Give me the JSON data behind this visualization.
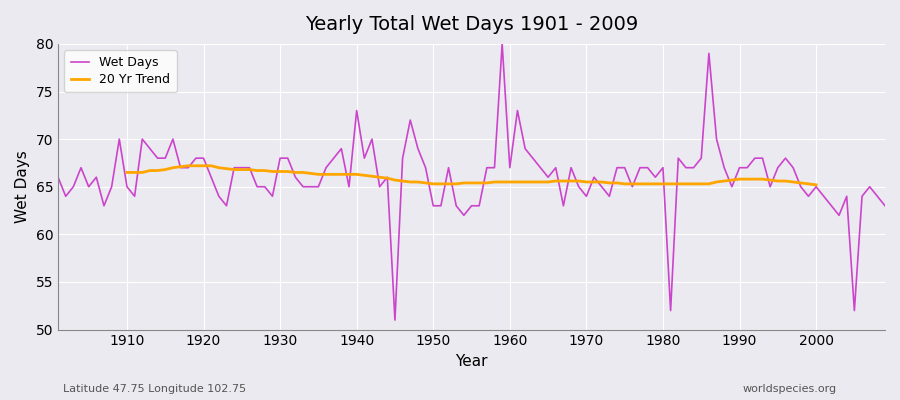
{
  "title": "Yearly Total Wet Days 1901 - 2009",
  "xlabel": "Year",
  "ylabel": "Wet Days",
  "ylim": [
    50,
    80
  ],
  "xlim": [
    1901,
    2009
  ],
  "yticks": [
    50,
    55,
    60,
    65,
    70,
    75,
    80
  ],
  "xticks": [
    1910,
    1920,
    1930,
    1940,
    1950,
    1960,
    1970,
    1980,
    1990,
    2000
  ],
  "wet_days_color": "#CC44CC",
  "trend_color": "#FFA500",
  "background_color": "#E8E8F0",
  "grid_color": "#FFFFFF",
  "legend_labels": [
    "Wet Days",
    "20 Yr Trend"
  ],
  "footer_left": "Latitude 47.75 Longitude 102.75",
  "footer_right": "worldspecies.org",
  "years": [
    1901,
    1902,
    1903,
    1904,
    1905,
    1906,
    1907,
    1908,
    1909,
    1910,
    1911,
    1912,
    1913,
    1914,
    1915,
    1916,
    1917,
    1918,
    1919,
    1920,
    1921,
    1922,
    1923,
    1924,
    1925,
    1926,
    1927,
    1928,
    1929,
    1930,
    1931,
    1932,
    1933,
    1934,
    1935,
    1936,
    1937,
    1938,
    1939,
    1940,
    1941,
    1942,
    1943,
    1944,
    1945,
    1946,
    1947,
    1948,
    1949,
    1950,
    1951,
    1952,
    1953,
    1954,
    1955,
    1956,
    1957,
    1958,
    1959,
    1960,
    1961,
    1962,
    1963,
    1964,
    1965,
    1966,
    1967,
    1968,
    1969,
    1970,
    1971,
    1972,
    1973,
    1974,
    1975,
    1976,
    1977,
    1978,
    1979,
    1980,
    1981,
    1982,
    1983,
    1984,
    1985,
    1986,
    1987,
    1988,
    1989,
    1990,
    1991,
    1992,
    1993,
    1994,
    1995,
    1996,
    1997,
    1998,
    1999,
    2000,
    2001,
    2002,
    2003,
    2004,
    2005,
    2006,
    2007,
    2008,
    2009
  ],
  "wet_days": [
    66,
    64,
    65,
    67,
    65,
    66,
    63,
    65,
    70,
    65,
    64,
    70,
    69,
    68,
    68,
    70,
    67,
    67,
    68,
    68,
    66,
    64,
    63,
    67,
    67,
    67,
    65,
    65,
    64,
    68,
    68,
    66,
    65,
    65,
    65,
    67,
    68,
    69,
    65,
    73,
    68,
    70,
    65,
    66,
    51,
    68,
    72,
    69,
    67,
    63,
    63,
    67,
    63,
    62,
    63,
    63,
    67,
    67,
    80,
    67,
    73,
    69,
    68,
    67,
    66,
    67,
    63,
    67,
    65,
    64,
    66,
    65,
    64,
    67,
    67,
    65,
    67,
    67,
    66,
    67,
    52,
    68,
    67,
    67,
    68,
    79,
    70,
    67,
    65,
    67,
    67,
    68,
    68,
    65,
    67,
    68,
    67,
    65,
    64,
    65,
    64,
    63,
    62,
    64,
    52,
    64,
    65,
    64,
    63
  ],
  "trend": [
    null,
    null,
    null,
    null,
    null,
    null,
    null,
    null,
    null,
    66.5,
    66.5,
    66.5,
    66.7,
    66.7,
    66.8,
    67.0,
    67.1,
    67.2,
    67.2,
    67.2,
    67.2,
    67.0,
    66.9,
    66.8,
    66.8,
    66.8,
    66.7,
    66.7,
    66.6,
    66.6,
    66.6,
    66.5,
    66.5,
    66.4,
    66.3,
    66.3,
    66.3,
    66.3,
    66.3,
    66.3,
    66.2,
    66.1,
    66.0,
    65.9,
    65.7,
    65.6,
    65.5,
    65.5,
    65.4,
    65.3,
    65.3,
    65.3,
    65.3,
    65.4,
    65.4,
    65.4,
    65.4,
    65.5,
    65.5,
    65.5,
    65.5,
    65.5,
    65.5,
    65.5,
    65.5,
    65.6,
    65.6,
    65.6,
    65.6,
    65.5,
    65.5,
    65.5,
    65.4,
    65.4,
    65.3,
    65.3,
    65.3,
    65.3,
    65.3,
    65.3,
    65.3,
    65.3,
    65.3,
    65.3,
    65.3,
    65.3,
    65.5,
    65.6,
    65.7,
    65.8,
    65.8,
    65.8,
    65.8,
    65.7,
    65.6,
    65.6,
    65.5,
    65.4,
    65.3,
    65.2,
    null,
    null,
    null,
    null,
    null,
    null,
    null,
    null,
    null
  ]
}
